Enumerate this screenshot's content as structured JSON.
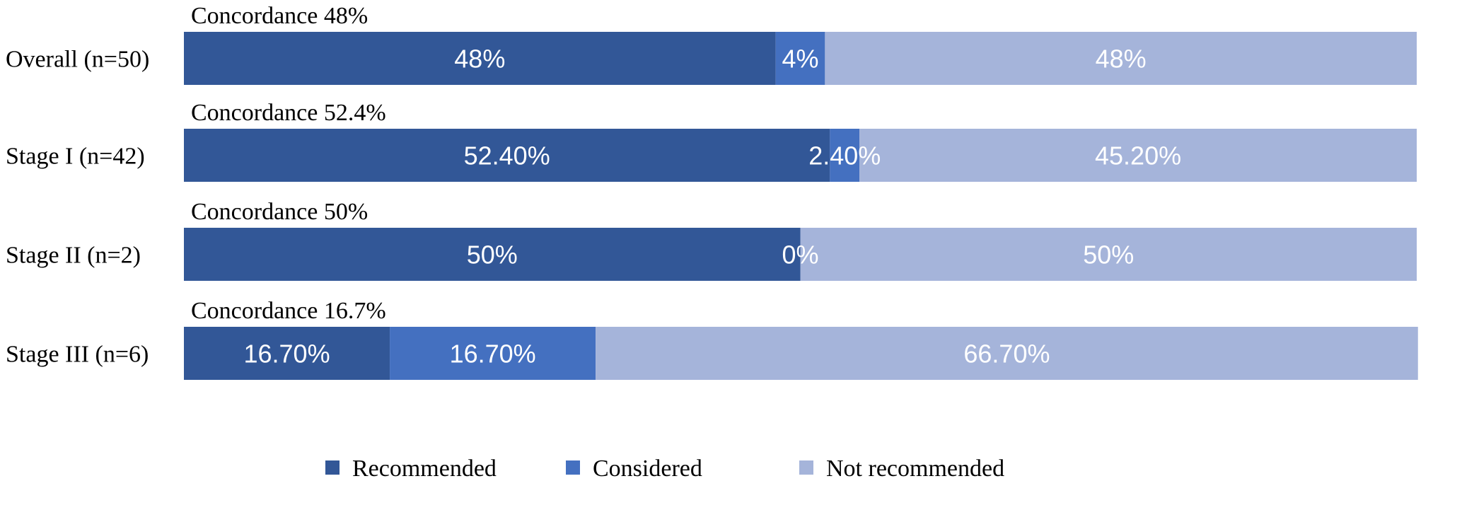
{
  "chart_data": {
    "type": "bar",
    "orientation": "horizontal",
    "stacked": true,
    "title": "",
    "xlabel": "",
    "ylabel": "",
    "xlim": [
      0,
      100
    ],
    "grid": false,
    "legend_position": "bottom",
    "categories": [
      "Overall (n=50)",
      "Stage I (n=42)",
      "Stage II (n=2)",
      "Stage III (n=6)"
    ],
    "annotations": [
      "Concordance 48%",
      "Concordance 52.4%",
      "Concordance 50%",
      "Concordance 16.7%"
    ],
    "series": [
      {
        "name": "Recommended",
        "color": "#325797",
        "values": [
          48,
          52.4,
          50,
          16.7
        ],
        "labels": [
          "48%",
          "52.40%",
          "50%",
          "16.70%"
        ]
      },
      {
        "name": "Considered",
        "color": "#4470c0",
        "values": [
          4,
          2.4,
          0,
          16.7
        ],
        "labels": [
          "4%",
          "2.40%",
          "0%",
          "16.70%"
        ]
      },
      {
        "name": "Not recommended",
        "color": "#a5b4da",
        "values": [
          48,
          45.2,
          50,
          66.7
        ],
        "labels": [
          "48%",
          "45.20%",
          "50%",
          "66.70%"
        ]
      }
    ]
  }
}
